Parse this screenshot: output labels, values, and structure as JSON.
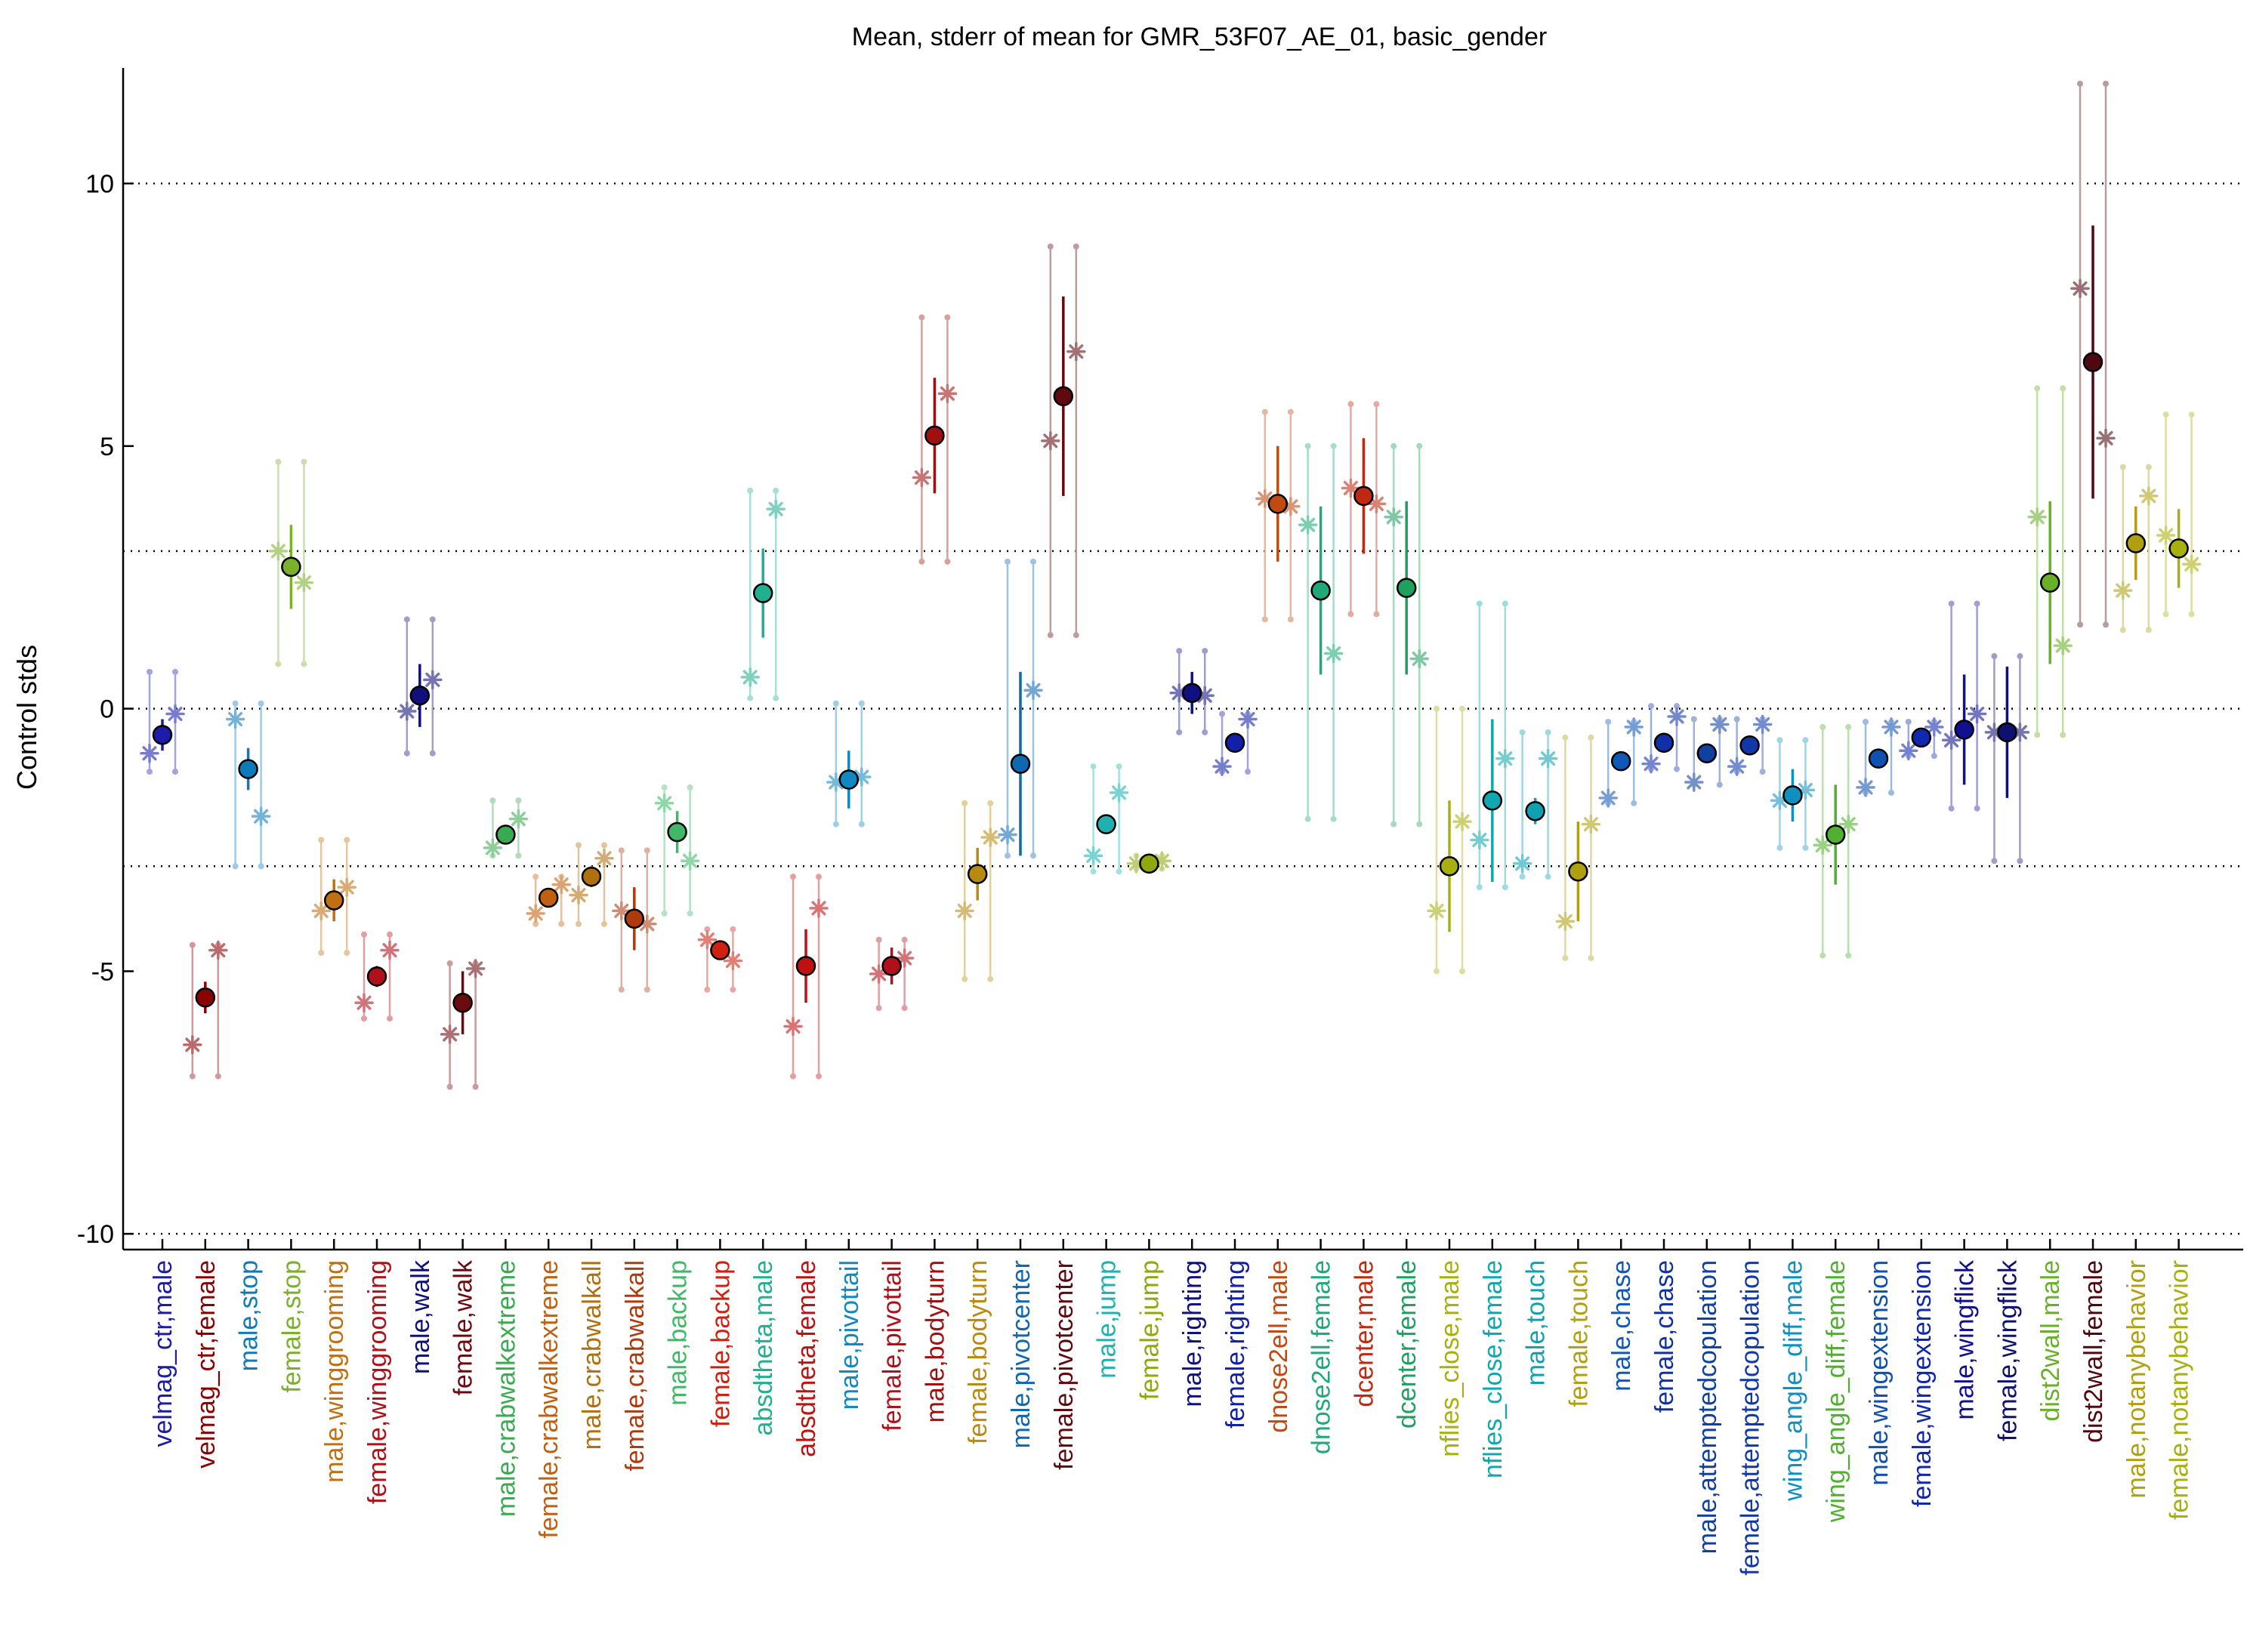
{
  "chart_data": {
    "type": "scatter",
    "title": "Mean, stderr of mean for GMR_53F07_AE_01, basic_gender",
    "xlabel": "",
    "ylabel": "Control stds",
    "ylim": [
      -10.3,
      12.2
    ],
    "yticks": [
      -10,
      -5,
      0,
      5,
      10
    ],
    "ytick_labels": [
      "-10",
      "-5",
      "0",
      "5",
      "10"
    ],
    "reference_lines": [
      -10,
      -3,
      0,
      3,
      10
    ],
    "grid": false,
    "legend": "none",
    "categories": [
      {
        "label": "velmag_ctr,male",
        "color": "#1c1ca8",
        "mean": -0.5,
        "err": 0.3,
        "stars": [
          -0.85,
          -0.1
        ],
        "range": [
          -1.2,
          0.7
        ]
      },
      {
        "label": "velmag_ctr,female",
        "color": "#8b0000",
        "mean": -5.5,
        "err": 0.3,
        "stars": [
          -6.4,
          -4.6
        ],
        "range": [
          -7.0,
          -4.5
        ]
      },
      {
        "label": "male,stop",
        "color": "#0f7ab8",
        "mean": -1.15,
        "err": 0.4,
        "stars": [
          -0.2,
          -2.05
        ],
        "range": [
          -3.0,
          0.1
        ]
      },
      {
        "label": "female,stop",
        "color": "#7ab02a",
        "mean": 2.7,
        "err": 0.8,
        "stars": [
          3.0,
          2.4
        ],
        "range": [
          0.85,
          4.7
        ]
      },
      {
        "label": "male,winggrooming",
        "color": "#c07010",
        "mean": -3.65,
        "err": 0.4,
        "stars": [
          -3.85,
          -3.4
        ],
        "range": [
          -4.65,
          -2.5
        ]
      },
      {
        "label": "female,winggrooming",
        "color": "#b0101a",
        "mean": -5.1,
        "err": 0.2,
        "stars": [
          -5.6,
          -4.6
        ],
        "range": [
          -5.9,
          -4.3
        ]
      },
      {
        "label": "male,walk",
        "color": "#10107a",
        "mean": 0.25,
        "err": 0.6,
        "stars": [
          -0.05,
          0.55
        ],
        "range": [
          -0.85,
          1.7
        ]
      },
      {
        "label": "female,walk",
        "color": "#6b0a10",
        "mean": -5.6,
        "err": 0.6,
        "stars": [
          -6.2,
          -4.95
        ],
        "range": [
          -7.2,
          -4.85
        ]
      },
      {
        "label": "male,crabwalkextreme",
        "color": "#3aaa50",
        "mean": -2.4,
        "err": 0.15,
        "stars": [
          -2.65,
          -2.1
        ],
        "range": [
          -2.8,
          -1.75
        ]
      },
      {
        "label": "female,crabwalkextreme",
        "color": "#c06010",
        "mean": -3.6,
        "err": 0.15,
        "stars": [
          -3.9,
          -3.35
        ],
        "range": [
          -4.1,
          -3.2
        ]
      },
      {
        "label": "male,crabwalkall",
        "color": "#b07010",
        "mean": -3.2,
        "err": 0.2,
        "stars": [
          -3.55,
          -2.85
        ],
        "range": [
          -4.1,
          -2.6
        ]
      },
      {
        "label": "female,crabwalkall",
        "color": "#b03a10",
        "mean": -4.0,
        "err": 0.6,
        "stars": [
          -3.85,
          -4.1
        ],
        "range": [
          -5.35,
          -2.7
        ]
      },
      {
        "label": "male,backup",
        "color": "#40b868",
        "mean": -2.35,
        "err": 0.4,
        "stars": [
          -1.8,
          -2.9
        ],
        "range": [
          -3.9,
          -1.5
        ]
      },
      {
        "label": "female,backup",
        "color": "#d02010",
        "mean": -4.6,
        "err": 0.15,
        "stars": [
          -4.4,
          -4.8
        ],
        "range": [
          -5.35,
          -4.2
        ]
      },
      {
        "label": "absdtheta,male",
        "color": "#20b090",
        "mean": 2.2,
        "err": 0.85,
        "stars": [
          0.6,
          3.8
        ],
        "range": [
          0.2,
          4.15
        ]
      },
      {
        "label": "absdtheta,female",
        "color": "#c01010",
        "mean": -4.9,
        "err": 0.7,
        "stars": [
          -6.05,
          -3.8
        ],
        "range": [
          -7.0,
          -3.2
        ]
      },
      {
        "label": "male,pivottail",
        "color": "#1088c0",
        "mean": -1.35,
        "err": 0.55,
        "stars": [
          -1.4,
          -1.3
        ],
        "range": [
          -2.2,
          0.1
        ]
      },
      {
        "label": "female,pivottail",
        "color": "#b0101a",
        "mean": -4.9,
        "err": 0.35,
        "stars": [
          -5.05,
          -4.75
        ],
        "range": [
          -5.7,
          -4.4
        ]
      },
      {
        "label": "male,bodyturn",
        "color": "#a01010",
        "mean": 5.2,
        "err": 1.1,
        "stars": [
          4.4,
          6.0
        ],
        "range": [
          2.8,
          7.45
        ]
      },
      {
        "label": "female,bodyturn",
        "color": "#b88a10",
        "mean": -3.15,
        "err": 0.5,
        "stars": [
          -3.85,
          -2.45
        ],
        "range": [
          -5.15,
          -1.8
        ]
      },
      {
        "label": "male,pivotcenter",
        "color": "#1068b0",
        "mean": -1.05,
        "err": 1.75,
        "stars": [
          -2.4,
          0.35
        ],
        "range": [
          -2.8,
          2.8
        ]
      },
      {
        "label": "female,pivotcenter",
        "color": "#600a10",
        "mean": 5.95,
        "err": 1.9,
        "stars": [
          5.1,
          6.8
        ],
        "range": [
          1.4,
          8.8
        ]
      },
      {
        "label": "male,jump",
        "color": "#20b0b0",
        "mean": -2.2,
        "err": 0.15,
        "stars": [
          -2.8,
          -1.6
        ],
        "range": [
          -3.1,
          -1.1
        ]
      },
      {
        "label": "female,jump",
        "color": "#90a810",
        "mean": -2.95,
        "err": 0.05,
        "stars": [
          -2.95,
          -2.9
        ],
        "range": [
          -3.05,
          -2.8
        ]
      },
      {
        "label": "male,righting",
        "color": "#101080",
        "mean": 0.3,
        "err": 0.4,
        "stars": [
          0.3,
          0.25
        ],
        "range": [
          -0.45,
          1.1
        ]
      },
      {
        "label": "female,righting",
        "color": "#1020a8",
        "mean": -0.65,
        "err": 0.1,
        "stars": [
          -1.1,
          -0.2
        ],
        "range": [
          -1.2,
          -0.1
        ]
      },
      {
        "label": "dnose2ell,male",
        "color": "#c04a10",
        "mean": 3.9,
        "err": 1.1,
        "stars": [
          4.0,
          3.85
        ],
        "range": [
          1.7,
          5.65
        ]
      },
      {
        "label": "dnose2ell,female",
        "color": "#20a878",
        "mean": 2.25,
        "err": 1.6,
        "stars": [
          3.5,
          1.05
        ],
        "range": [
          -2.1,
          5.0
        ]
      },
      {
        "label": "dcenter,male",
        "color": "#c02810",
        "mean": 4.05,
        "err": 1.1,
        "stars": [
          4.2,
          3.9
        ],
        "range": [
          1.8,
          5.8
        ]
      },
      {
        "label": "dcenter,female",
        "color": "#20a060",
        "mean": 2.3,
        "err": 1.65,
        "stars": [
          3.65,
          0.95
        ],
        "range": [
          -2.2,
          5.0
        ]
      },
      {
        "label": "nflies_close,male",
        "color": "#a8b010",
        "mean": -3.0,
        "err": 1.25,
        "stars": [
          -3.85,
          -2.15
        ],
        "range": [
          -5.0,
          0.0
        ]
      },
      {
        "label": "nflies_close,female",
        "color": "#10a8b0",
        "mean": -1.75,
        "err": 1.55,
        "stars": [
          -2.5,
          -0.95
        ],
        "range": [
          -3.4,
          2.0
        ]
      },
      {
        "label": "male,touch",
        "color": "#10a0b0",
        "mean": -1.95,
        "err": 0.25,
        "stars": [
          -2.95,
          -0.95
        ],
        "range": [
          -3.2,
          -0.45
        ]
      },
      {
        "label": "female,touch",
        "color": "#b0a010",
        "mean": -3.1,
        "err": 0.95,
        "stars": [
          -4.05,
          -2.2
        ],
        "range": [
          -4.75,
          -0.55
        ]
      },
      {
        "label": "male,chase",
        "color": "#1058b8",
        "mean": -1.0,
        "err": 0.05,
        "stars": [
          -1.7,
          -0.35
        ],
        "range": [
          -1.8,
          -0.25
        ]
      },
      {
        "label": "female,chase",
        "color": "#1030a8",
        "mean": -0.65,
        "err": 0.05,
        "stars": [
          -1.05,
          -0.15
        ],
        "range": [
          -1.15,
          0.05
        ]
      },
      {
        "label": "male,attemptedcopulation",
        "color": "#1040a0",
        "mean": -0.85,
        "err": 0.05,
        "stars": [
          -1.4,
          -0.3
        ],
        "range": [
          -1.45,
          -0.2
        ]
      },
      {
        "label": "female,attemptedcopulation",
        "color": "#1038a8",
        "mean": -0.7,
        "err": 0.05,
        "stars": [
          -1.1,
          -0.3
        ],
        "range": [
          -1.2,
          -0.2
        ]
      },
      {
        "label": "wing_angle_diff,male",
        "color": "#1090c0",
        "mean": -1.65,
        "err": 0.5,
        "stars": [
          -1.75,
          -1.55
        ],
        "range": [
          -2.65,
          -0.6
        ]
      },
      {
        "label": "wing_angle_diff,female",
        "color": "#50b030",
        "mean": -2.4,
        "err": 0.95,
        "stars": [
          -2.6,
          -2.2
        ],
        "range": [
          -4.7,
          -0.35
        ]
      },
      {
        "label": "male,wingextension",
        "color": "#1050b0",
        "mean": -0.95,
        "err": 0.05,
        "stars": [
          -1.5,
          -0.35
        ],
        "range": [
          -1.6,
          -0.25
        ]
      },
      {
        "label": "female,wingextension",
        "color": "#1028b0",
        "mean": -0.55,
        "err": 0.05,
        "stars": [
          -0.8,
          -0.35
        ],
        "range": [
          -0.9,
          -0.25
        ]
      },
      {
        "label": "male,wingflick",
        "color": "#101090",
        "mean": -0.4,
        "err": 1.05,
        "stars": [
          -0.6,
          -0.1
        ],
        "range": [
          -1.9,
          2.0
        ]
      },
      {
        "label": "female,wingflick",
        "color": "#101070",
        "mean": -0.45,
        "err": 1.25,
        "stars": [
          -0.45,
          -0.45
        ],
        "range": [
          -2.9,
          1.0
        ]
      },
      {
        "label": "dist2wall,male",
        "color": "#68b028",
        "mean": 2.4,
        "err": 1.55,
        "stars": [
          3.65,
          1.2
        ],
        "range": [
          -0.5,
          6.1
        ]
      },
      {
        "label": "dist2wall,female",
        "color": "#500810",
        "mean": 6.6,
        "err": 2.6,
        "stars": [
          8.0,
          5.15
        ],
        "range": [
          1.6,
          11.9
        ]
      },
      {
        "label": "male,notanybehavior",
        "color": "#b0a010",
        "mean": 3.15,
        "err": 0.7,
        "stars": [
          2.25,
          4.05
        ],
        "range": [
          1.5,
          4.6
        ]
      },
      {
        "label": "female,notanybehavior",
        "color": "#a8b010",
        "mean": 3.05,
        "err": 0.75,
        "stars": [
          3.3,
          2.75
        ],
        "range": [
          1.8,
          5.6
        ]
      }
    ]
  }
}
